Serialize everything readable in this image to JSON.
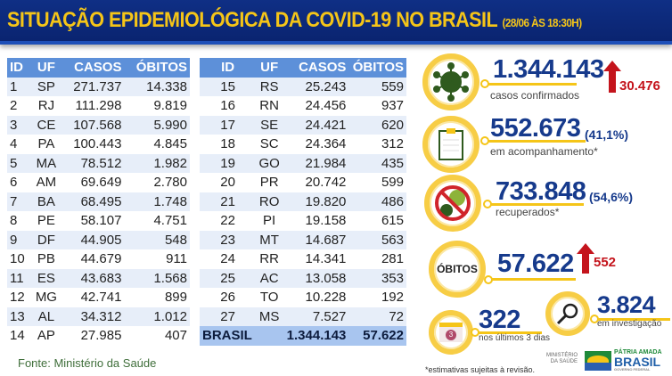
{
  "header": {
    "title": "SITUAÇÃO EPIDEMIOLÓGICA DA COVID-19 NO BRASIL",
    "date": "(28/06 ÀS 18:30H)"
  },
  "table": {
    "columns": [
      "ID",
      "UF",
      "CASOS",
      "ÓBITOS"
    ],
    "left": [
      [
        "1",
        "SP",
        "271.737",
        "14.338"
      ],
      [
        "2",
        "RJ",
        "111.298",
        "9.819"
      ],
      [
        "3",
        "CE",
        "107.568",
        "5.990"
      ],
      [
        "4",
        "PA",
        "100.443",
        "4.845"
      ],
      [
        "5",
        "MA",
        "78.512",
        "1.982"
      ],
      [
        "6",
        "AM",
        "69.649",
        "2.780"
      ],
      [
        "7",
        "BA",
        "68.495",
        "1.748"
      ],
      [
        "8",
        "PE",
        "58.107",
        "4.751"
      ],
      [
        "9",
        "DF",
        "44.905",
        "548"
      ],
      [
        "10",
        "PB",
        "44.679",
        "911"
      ],
      [
        "11",
        "ES",
        "43.683",
        "1.568"
      ],
      [
        "12",
        "MG",
        "42.741",
        "899"
      ],
      [
        "13",
        "AL",
        "34.312",
        "1.012"
      ],
      [
        "14",
        "AP",
        "27.985",
        "407"
      ]
    ],
    "right": [
      [
        "15",
        "RS",
        "25.243",
        "559"
      ],
      [
        "16",
        "RN",
        "24.456",
        "937"
      ],
      [
        "17",
        "SE",
        "24.421",
        "620"
      ],
      [
        "18",
        "SC",
        "24.364",
        "312"
      ],
      [
        "19",
        "GO",
        "21.984",
        "435"
      ],
      [
        "20",
        "PR",
        "20.742",
        "599"
      ],
      [
        "21",
        "RO",
        "19.820",
        "486"
      ],
      [
        "22",
        "PI",
        "19.158",
        "615"
      ],
      [
        "23",
        "MT",
        "14.687",
        "563"
      ],
      [
        "24",
        "RR",
        "14.341",
        "281"
      ],
      [
        "25",
        "AC",
        "13.058",
        "353"
      ],
      [
        "26",
        "TO",
        "10.228",
        "192"
      ],
      [
        "27",
        "MS",
        "7.527",
        "72"
      ]
    ],
    "total": {
      "label": "BRASIL",
      "casos": "1.344.143",
      "obitos": "57.622"
    }
  },
  "source": "Fonte: Ministério da Saúde",
  "stats": {
    "confirmed": {
      "value": "1.344.143",
      "label": "casos confirmados",
      "increase": "30.476",
      "icon": "virus-icon"
    },
    "monitoring": {
      "value": "552.673",
      "pct": "(41,1%)",
      "label": "em acompanhamento*",
      "icon": "clipboard-icon"
    },
    "recovered": {
      "value": "733.848",
      "pct": "(54,6%)",
      "label": "recuperados*",
      "icon": "no-virus-icon"
    },
    "deaths": {
      "badge": "ÓBITOS",
      "value": "57.622",
      "increase": "552"
    },
    "investigation": {
      "value": "3.824",
      "label": "em investigação",
      "icon": "magnifier-icon"
    },
    "recent": {
      "value": "322",
      "label": "nos últimos 3 dias",
      "calendar_day": "3",
      "icon": "calendar-icon"
    }
  },
  "footnote": "*estimativas sujeitas à revisão.",
  "logos": {
    "ministry": "MINISTÉRIO DA SAÚDE",
    "brand_line1": "PÁTRIA AMADA",
    "brand_line2": "BRASIL",
    "brand_line3": "GOVERNO FEDERAL"
  },
  "colors": {
    "title_bg": "#0f2f85",
    "title_text": "#f5c518",
    "table_header": "#5d90d9",
    "stat_blue": "#163a8c",
    "increase_red": "#c4141c",
    "ring": "#f7cd45"
  }
}
